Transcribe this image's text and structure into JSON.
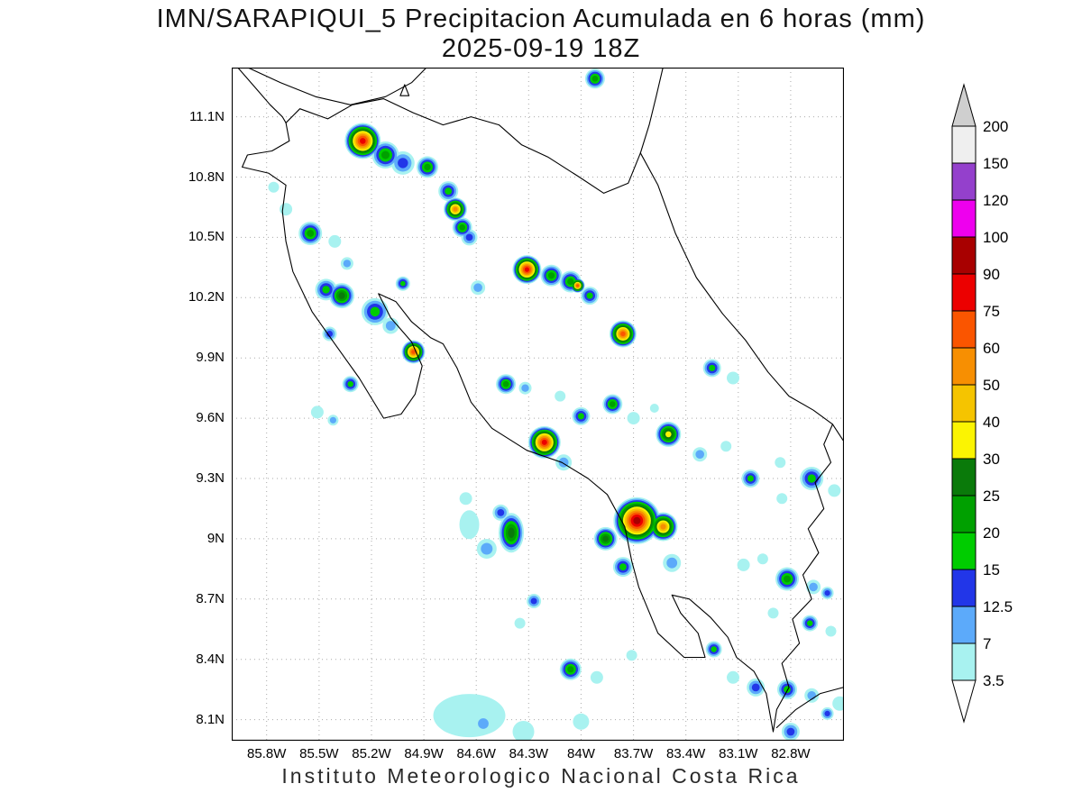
{
  "title": {
    "line1": "IMN/SARAPIQUI_5 Precipitacion Acumulada en 6 horas (mm)",
    "line2": "2025-09-19 18Z"
  },
  "caption": "Instituto Meteorologico Nacional Costa Rica",
  "axes": {
    "lat_ticks": [
      {
        "label": "11.1N",
        "lat": 11.1
      },
      {
        "label": "10.8N",
        "lat": 10.8
      },
      {
        "label": "10.5N",
        "lat": 10.5
      },
      {
        "label": "10.2N",
        "lat": 10.2
      },
      {
        "label": "9.9N",
        "lat": 9.9
      },
      {
        "label": "9.6N",
        "lat": 9.6
      },
      {
        "label": "9.3N",
        "lat": 9.3
      },
      {
        "label": "9N",
        "lat": 9.0
      },
      {
        "label": "8.7N",
        "lat": 8.7
      },
      {
        "label": "8.4N",
        "lat": 8.4
      },
      {
        "label": "8.1N",
        "lat": 8.1
      }
    ],
    "lon_ticks": [
      {
        "label": "85.8W",
        "lon": -85.8
      },
      {
        "label": "85.5W",
        "lon": -85.5
      },
      {
        "label": "85.2W",
        "lon": -85.2
      },
      {
        "label": "84.9W",
        "lon": -84.9
      },
      {
        "label": "84.6W",
        "lon": -84.6
      },
      {
        "label": "84.3W",
        "lon": -84.3
      },
      {
        "label": "84W",
        "lon": -84.0
      },
      {
        "label": "83.7W",
        "lon": -83.7
      },
      {
        "label": "83.4W",
        "lon": -83.4
      },
      {
        "label": "83.1W",
        "lon": -83.1
      },
      {
        "label": "82.8W",
        "lon": -82.8
      }
    ]
  },
  "geo": {
    "lon_min": -86.0,
    "lon_max": -82.495,
    "lat_min": 7.995,
    "lat_max": 11.345
  },
  "style": {
    "grid_color": "#aaaaaa",
    "frame_color": "#000000",
    "text_color": "#000000"
  },
  "colorbar": {
    "labels": [
      "3.5",
      "7",
      "12.5",
      "15",
      "20",
      "25",
      "30",
      "40",
      "50",
      "60",
      "75",
      "90",
      "100",
      "120",
      "150",
      "200"
    ],
    "levels": [
      3.5,
      7,
      12.5,
      15,
      20,
      25,
      30,
      40,
      50,
      60,
      75,
      90,
      100,
      120,
      150,
      200
    ],
    "segment_colors": [
      "#a8f2f0",
      "#5caafa",
      "#2236e8",
      "#00cc00",
      "#00a000",
      "#0a7a0a",
      "#fbf402",
      "#f5c400",
      "#f78f02",
      "#fa5500",
      "#ec0000",
      "#a80000",
      "#ee00ee",
      "#9440cc",
      "#efefef"
    ],
    "below_color": "#ffffff",
    "above_color": "#cfcfcf"
  },
  "chart_data": {
    "type": "heatmap",
    "title": "IMN/SARAPIQUI_5 Precipitacion Acumulada en 6 horas (mm) 2025-09-19 18Z",
    "units": "mm",
    "lon_range": [
      -86.0,
      -82.5
    ],
    "lat_range": [
      8.0,
      11.35
    ],
    "levels_mm": [
      3.5,
      7,
      12.5,
      15,
      20,
      25,
      30,
      40,
      50,
      60,
      75,
      90,
      100,
      120,
      150,
      200
    ],
    "cells_format": "[lon, lat, radius_px, max_mm, optional_ry_px]",
    "cells": [
      [
        -85.25,
        10.98,
        20,
        80
      ],
      [
        -85.12,
        10.91,
        15,
        22
      ],
      [
        -85.02,
        10.87,
        13,
        13
      ],
      [
        -84.88,
        10.85,
        12,
        22
      ],
      [
        -84.76,
        10.73,
        11,
        17
      ],
      [
        -84.72,
        10.64,
        13,
        55
      ],
      [
        -84.68,
        10.55,
        11,
        22
      ],
      [
        -84.64,
        10.5,
        9,
        13
      ],
      [
        -85.69,
        10.64,
        7,
        5
      ],
      [
        -85.76,
        10.75,
        6,
        5
      ],
      [
        -85.55,
        10.52,
        13,
        22
      ],
      [
        -85.41,
        10.48,
        7,
        5
      ],
      [
        -85.34,
        10.37,
        7,
        10
      ],
      [
        -85.46,
        10.24,
        12,
        17
      ],
      [
        -85.37,
        10.21,
        14,
        27
      ],
      [
        -85.18,
        10.13,
        15,
        17
      ],
      [
        -85.09,
        10.06,
        9,
        10
      ],
      [
        -85.02,
        10.27,
        8,
        17
      ],
      [
        -85.44,
        10.02,
        8,
        13
      ],
      [
        -84.96,
        9.93,
        13,
        65
      ],
      [
        -85.32,
        9.77,
        9,
        17
      ],
      [
        -85.51,
        9.63,
        7,
        5
      ],
      [
        -85.42,
        9.59,
        6,
        10
      ],
      [
        -83.92,
        11.29,
        11,
        22
      ],
      [
        -84.59,
        10.25,
        8,
        10
      ],
      [
        -84.31,
        10.34,
        16,
        80
      ],
      [
        -84.17,
        10.31,
        12,
        22
      ],
      [
        -84.06,
        10.28,
        12,
        22
      ],
      [
        -84.02,
        10.26,
        8,
        65
      ],
      [
        -83.95,
        10.21,
        10,
        17
      ],
      [
        -83.76,
        10.02,
        15,
        65
      ],
      [
        -83.25,
        9.85,
        10,
        17
      ],
      [
        -83.13,
        9.8,
        7,
        5
      ],
      [
        -84.43,
        9.77,
        11,
        22
      ],
      [
        -84.32,
        9.75,
        7,
        10
      ],
      [
        -84.12,
        9.71,
        6,
        5
      ],
      [
        -84.0,
        9.61,
        10,
        17
      ],
      [
        -83.82,
        9.67,
        11,
        22
      ],
      [
        -83.7,
        9.6,
        7,
        5
      ],
      [
        -83.58,
        9.65,
        5,
        5
      ],
      [
        -83.5,
        9.52,
        14,
        35
      ],
      [
        -83.32,
        9.42,
        8,
        10
      ],
      [
        -83.17,
        9.46,
        6,
        5
      ],
      [
        -83.03,
        9.3,
        10,
        17
      ],
      [
        -82.86,
        9.38,
        6,
        5
      ],
      [
        -82.68,
        9.3,
        13,
        17
      ],
      [
        -82.55,
        9.24,
        7,
        5
      ],
      [
        -82.85,
        9.2,
        6,
        5
      ],
      [
        -84.21,
        9.48,
        18,
        80
      ],
      [
        -84.1,
        9.38,
        9,
        10
      ],
      [
        -83.68,
        9.09,
        26,
        95
      ],
      [
        -83.53,
        9.06,
        16,
        55
      ],
      [
        -83.86,
        9.0,
        13,
        27
      ],
      [
        -83.76,
        8.86,
        11,
        17
      ],
      [
        -83.48,
        8.88,
        10,
        10
      ],
      [
        -84.4,
        9.03,
        14,
        27,
        22
      ],
      [
        -84.46,
        9.13,
        9,
        13
      ],
      [
        -84.54,
        8.95,
        11,
        10
      ],
      [
        -84.64,
        9.07,
        11,
        5,
        16
      ],
      [
        -84.66,
        9.2,
        7,
        5
      ],
      [
        -83.07,
        8.87,
        7,
        5
      ],
      [
        -82.96,
        8.9,
        6,
        5
      ],
      [
        -82.82,
        8.8,
        13,
        22
      ],
      [
        -82.67,
        8.76,
        8,
        10
      ],
      [
        -82.59,
        8.73,
        7,
        13
      ],
      [
        -82.9,
        8.63,
        6,
        5
      ],
      [
        -82.69,
        8.58,
        9,
        17
      ],
      [
        -82.57,
        8.54,
        6,
        5
      ],
      [
        -84.27,
        8.69,
        8,
        13
      ],
      [
        -84.35,
        8.58,
        6,
        5
      ],
      [
        -84.06,
        8.35,
        12,
        22
      ],
      [
        -83.91,
        8.31,
        7,
        5
      ],
      [
        -83.71,
        8.42,
        6,
        5
      ],
      [
        -83.24,
        8.45,
        9,
        17
      ],
      [
        -83.13,
        8.31,
        7,
        5
      ],
      [
        -83.0,
        8.26,
        10,
        13
      ],
      [
        -82.82,
        8.25,
        11,
        17
      ],
      [
        -82.68,
        8.22,
        8,
        10
      ],
      [
        -82.59,
        8.13,
        7,
        13
      ],
      [
        -84.64,
        8.12,
        40,
        5,
        24
      ],
      [
        -84.56,
        8.08,
        10,
        10
      ],
      [
        -84.33,
        8.04,
        12,
        5
      ],
      [
        -84.0,
        8.09,
        9,
        5
      ],
      [
        -82.52,
        8.18,
        8,
        5
      ],
      [
        -82.8,
        8.04,
        10,
        13
      ]
    ]
  },
  "map_outline": {
    "stroke": "#000000",
    "polylines": [
      [
        [
          -85.97,
          11.35
        ],
        [
          -85.86,
          11.24
        ],
        [
          -85.78,
          11.16
        ],
        [
          -85.71,
          11.1
        ],
        [
          -85.69,
          11.07
        ]
      ],
      [
        [
          -85.69,
          11.07
        ],
        [
          -85.61,
          11.14
        ],
        [
          -85.45,
          11.09
        ],
        [
          -85.31,
          11.16
        ],
        [
          -85.13,
          11.19
        ],
        [
          -84.96,
          11.12
        ],
        [
          -84.79,
          11.06
        ],
        [
          -84.63,
          11.1
        ],
        [
          -84.47,
          11.06
        ],
        [
          -84.34,
          10.96
        ],
        [
          -84.19,
          10.9
        ],
        [
          -84.01,
          10.8
        ],
        [
          -83.87,
          10.72
        ],
        [
          -83.73,
          10.77
        ],
        [
          -83.66,
          10.92
        ]
      ],
      [
        [
          -83.66,
          10.92
        ],
        [
          -83.61,
          11.06
        ],
        [
          -83.57,
          11.2
        ],
        [
          -83.53,
          11.35
        ]
      ],
      [
        [
          -83.66,
          10.92
        ],
        [
          -83.56,
          10.76
        ],
        [
          -83.46,
          10.52
        ],
        [
          -83.34,
          10.3
        ],
        [
          -83.19,
          10.12
        ],
        [
          -83.06,
          9.99
        ],
        [
          -82.93,
          9.83
        ],
        [
          -82.81,
          9.71
        ],
        [
          -82.67,
          9.64
        ],
        [
          -82.56,
          9.57
        ]
      ],
      [
        [
          -82.56,
          9.57
        ],
        [
          -82.61,
          9.47
        ],
        [
          -82.57,
          9.38
        ],
        [
          -82.66,
          9.28
        ],
        [
          -82.61,
          9.15
        ],
        [
          -82.7,
          9.05
        ],
        [
          -82.64,
          8.93
        ],
        [
          -82.73,
          8.82
        ],
        [
          -82.68,
          8.7
        ],
        [
          -82.79,
          8.6
        ],
        [
          -82.75,
          8.48
        ],
        [
          -82.85,
          8.38
        ],
        [
          -82.81,
          8.26
        ],
        [
          -82.88,
          8.15
        ],
        [
          -82.9,
          8.04
        ]
      ],
      [
        [
          -85.69,
          11.07
        ],
        [
          -85.67,
          10.98
        ],
        [
          -85.77,
          10.93
        ],
        [
          -85.91,
          10.91
        ],
        [
          -85.94,
          10.85
        ],
        [
          -85.79,
          10.82
        ],
        [
          -85.69,
          10.76
        ],
        [
          -85.71,
          10.63
        ],
        [
          -85.69,
          10.48
        ],
        [
          -85.65,
          10.33
        ],
        [
          -85.54,
          10.13
        ],
        [
          -85.41,
          9.97
        ],
        [
          -85.27,
          9.8
        ],
        [
          -85.13,
          9.6
        ],
        [
          -85.03,
          9.62
        ],
        [
          -84.95,
          9.72
        ],
        [
          -84.91,
          9.86
        ],
        [
          -84.97,
          9.98
        ],
        [
          -85.09,
          10.1
        ],
        [
          -85.16,
          10.22
        ],
        [
          -85.06,
          10.18
        ],
        [
          -84.97,
          10.08
        ],
        [
          -84.86,
          10.0
        ],
        [
          -84.79,
          9.97
        ],
        [
          -84.71,
          9.85
        ],
        [
          -84.63,
          9.68
        ],
        [
          -84.51,
          9.55
        ],
        [
          -84.31,
          9.44
        ],
        [
          -84.11,
          9.38
        ],
        [
          -83.96,
          9.3
        ],
        [
          -83.85,
          9.22
        ],
        [
          -83.75,
          9.06
        ],
        [
          -83.71,
          8.89
        ],
        [
          -83.67,
          8.76
        ],
        [
          -83.56,
          8.53
        ],
        [
          -83.41,
          8.41
        ],
        [
          -83.29,
          8.41
        ],
        [
          -83.33,
          8.53
        ],
        [
          -83.43,
          8.63
        ],
        [
          -83.48,
          8.72
        ],
        [
          -83.38,
          8.7
        ],
        [
          -83.26,
          8.61
        ],
        [
          -83.16,
          8.51
        ],
        [
          -83.11,
          8.41
        ],
        [
          -83.01,
          8.34
        ],
        [
          -82.94,
          8.23
        ],
        [
          -82.9,
          8.04
        ]
      ],
      [
        [
          -82.56,
          9.57
        ],
        [
          -82.5,
          9.49
        ]
      ],
      [
        [
          -82.88,
          8.06
        ],
        [
          -82.77,
          8.15
        ],
        [
          -82.63,
          8.23
        ],
        [
          -82.5,
          8.26
        ]
      ],
      [
        [
          -85.92,
          11.35
        ],
        [
          -85.72,
          11.27
        ],
        [
          -85.52,
          11.2
        ],
        [
          -85.32,
          11.16
        ],
        [
          -85.12,
          11.2
        ],
        [
          -84.97,
          11.27
        ],
        [
          -84.88,
          11.35
        ]
      ],
      [
        [
          -85.01,
          11.26
        ],
        [
          -84.985,
          11.205
        ],
        [
          -85.035,
          11.205
        ],
        [
          -85.01,
          11.26
        ]
      ]
    ]
  }
}
